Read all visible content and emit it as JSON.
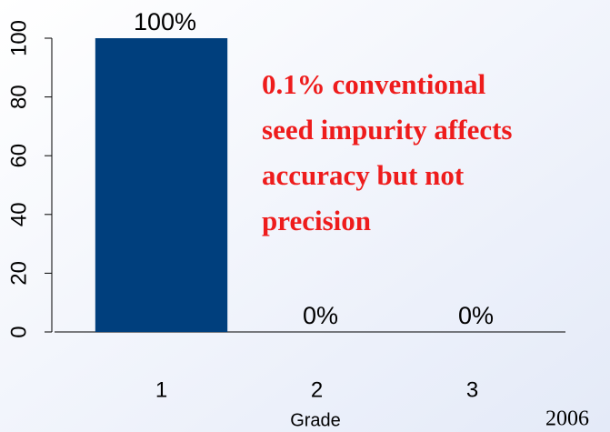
{
  "chart_data": {
    "type": "bar",
    "categories": [
      "1",
      "2",
      "3"
    ],
    "values": [
      100,
      0,
      0
    ],
    "value_labels": [
      "100%",
      "0%",
      "0%"
    ],
    "color": "#003f7d",
    "x_label": "Grade",
    "ylim": [
      0,
      100
    ],
    "yticks": [
      0,
      20,
      40,
      60,
      80,
      100
    ],
    "annotation": [
      "0.1% conventional",
      "seed impurity affects",
      "accuracy but not",
      "precision"
    ],
    "footer": "2006"
  }
}
